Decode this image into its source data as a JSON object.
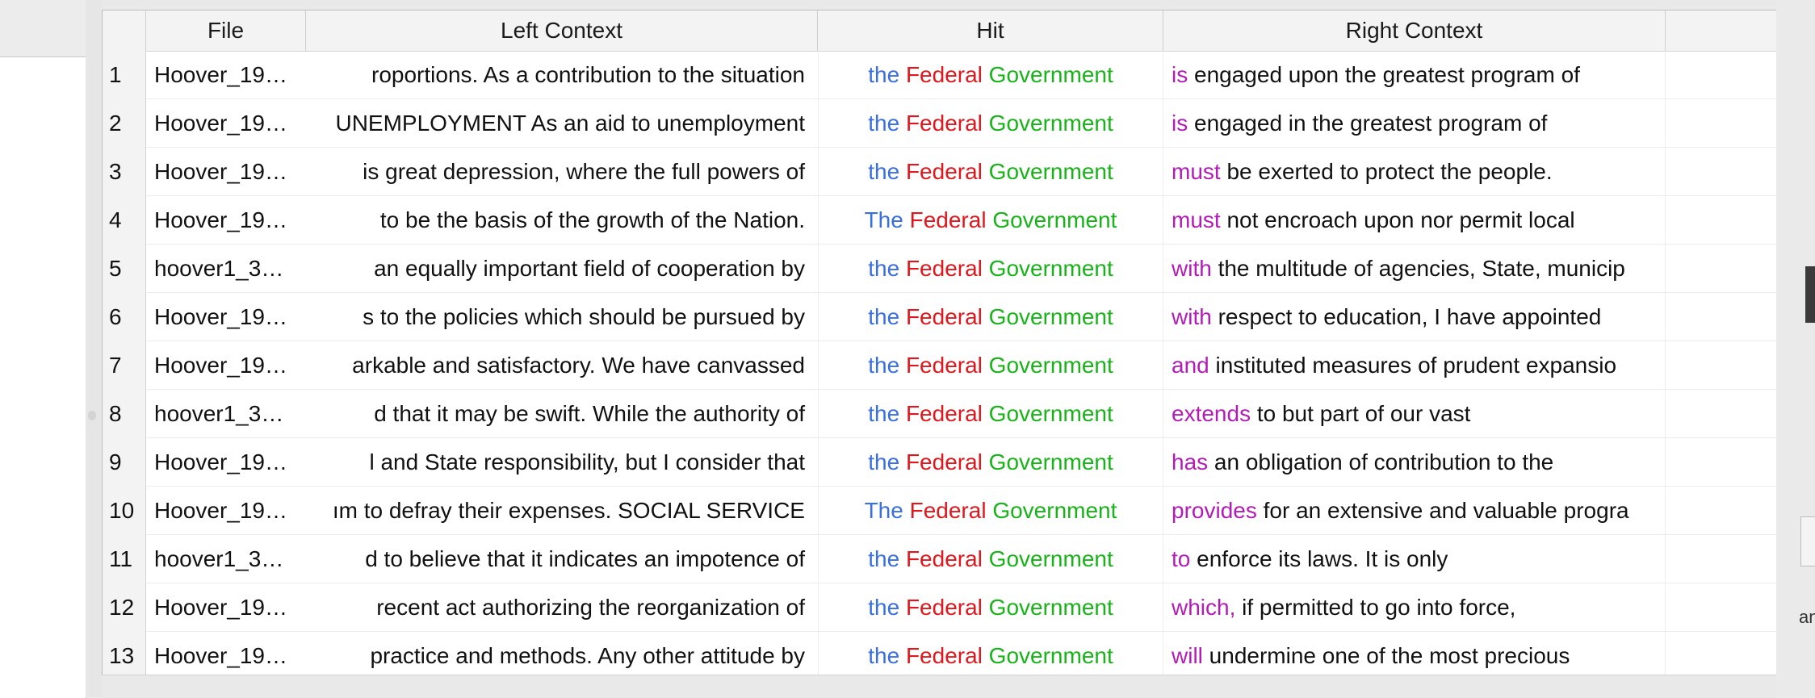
{
  "colors": {
    "hit_word_1": "#3a6fe0",
    "hit_word_2": "#e0171c",
    "hit_word_3": "#18b318",
    "right_keyword": "#b41cb8"
  },
  "columns": {
    "file": "File",
    "left": "Left Context",
    "hit": "Hit",
    "right": "Right Context"
  },
  "right_edge_fragment": "an",
  "rows": [
    {
      "num": "1",
      "file": "Hoover_19…",
      "left": "roportions. As a contribution to the situation",
      "hit": [
        "the",
        "Federal",
        "Government"
      ],
      "right_kw": "is",
      "right_rest": " engaged upon the greatest program of"
    },
    {
      "num": "2",
      "file": "Hoover_19…",
      "left": "UNEMPLOYMENT As an aid to unemployment",
      "hit": [
        "the",
        "Federal",
        "Government"
      ],
      "right_kw": "is",
      "right_rest": " engaged in the greatest program of"
    },
    {
      "num": "3",
      "file": "Hoover_19…",
      "left": "is great depression, where the full powers of",
      "hit": [
        "the",
        "Federal",
        "Government"
      ],
      "right_kw": "must",
      "right_rest": " be exerted to protect the people."
    },
    {
      "num": "4",
      "file": "Hoover_19…",
      "left": "to be the basis of the growth of the Nation.",
      "hit": [
        "The",
        "Federal",
        "Government"
      ],
      "right_kw": "must",
      "right_rest": " not encroach upon nor permit local"
    },
    {
      "num": "5",
      "file": "hoover1_3…",
      "left": "an equally important field of cooperation by",
      "hit": [
        "the",
        "Federal",
        "Government"
      ],
      "right_kw": "with",
      "right_rest": " the multitude of agencies, State, municip"
    },
    {
      "num": "6",
      "file": "Hoover_19…",
      "left": "s to the policies which should be pursued by",
      "hit": [
        "the",
        "Federal",
        "Government"
      ],
      "right_kw": "with",
      "right_rest": " respect to education, I have appointed"
    },
    {
      "num": "7",
      "file": "Hoover_19…",
      "left": "arkable and satisfactory. We have canvassed",
      "hit": [
        "the",
        "Federal",
        "Government"
      ],
      "right_kw": "and",
      "right_rest": " instituted measures of prudent expansio"
    },
    {
      "num": "8",
      "file": "hoover1_3…",
      "left": "d that it may be swift. While the authority of",
      "hit": [
        "the",
        "Federal",
        "Government"
      ],
      "right_kw": "extends",
      "right_rest": " to but part of our vast"
    },
    {
      "num": "9",
      "file": "Hoover_19…",
      "left": "l and State responsibility, but I consider that",
      "hit": [
        "the",
        "Federal",
        "Government"
      ],
      "right_kw": "has",
      "right_rest": " an obligation of contribution to the"
    },
    {
      "num": "10",
      "file": "Hoover_19…",
      "left": "ım to defray their expenses. SOCIAL SERVICE",
      "hit": [
        "The",
        "Federal",
        "Government"
      ],
      "right_kw": "provides",
      "right_rest": " for an extensive and valuable progra"
    },
    {
      "num": "11",
      "file": "hoover1_3…",
      "left": "d to believe that it indicates an impotence of",
      "hit": [
        "the",
        "Federal",
        "Government"
      ],
      "right_kw": "to",
      "right_rest": " enforce its laws. It is only"
    },
    {
      "num": "12",
      "file": "Hoover_19…",
      "left": "recent act authorizing the reorganization of",
      "hit": [
        "the",
        "Federal",
        "Government"
      ],
      "right_kw": "which,",
      "right_rest": " if permitted to go into force,"
    },
    {
      "num": "13",
      "file": "Hoover_19…",
      "left": "practice and methods. Any other attitude by",
      "hit": [
        "the",
        "Federal",
        "Government"
      ],
      "right_kw": "will",
      "right_rest": " undermine one of the most precious"
    }
  ]
}
